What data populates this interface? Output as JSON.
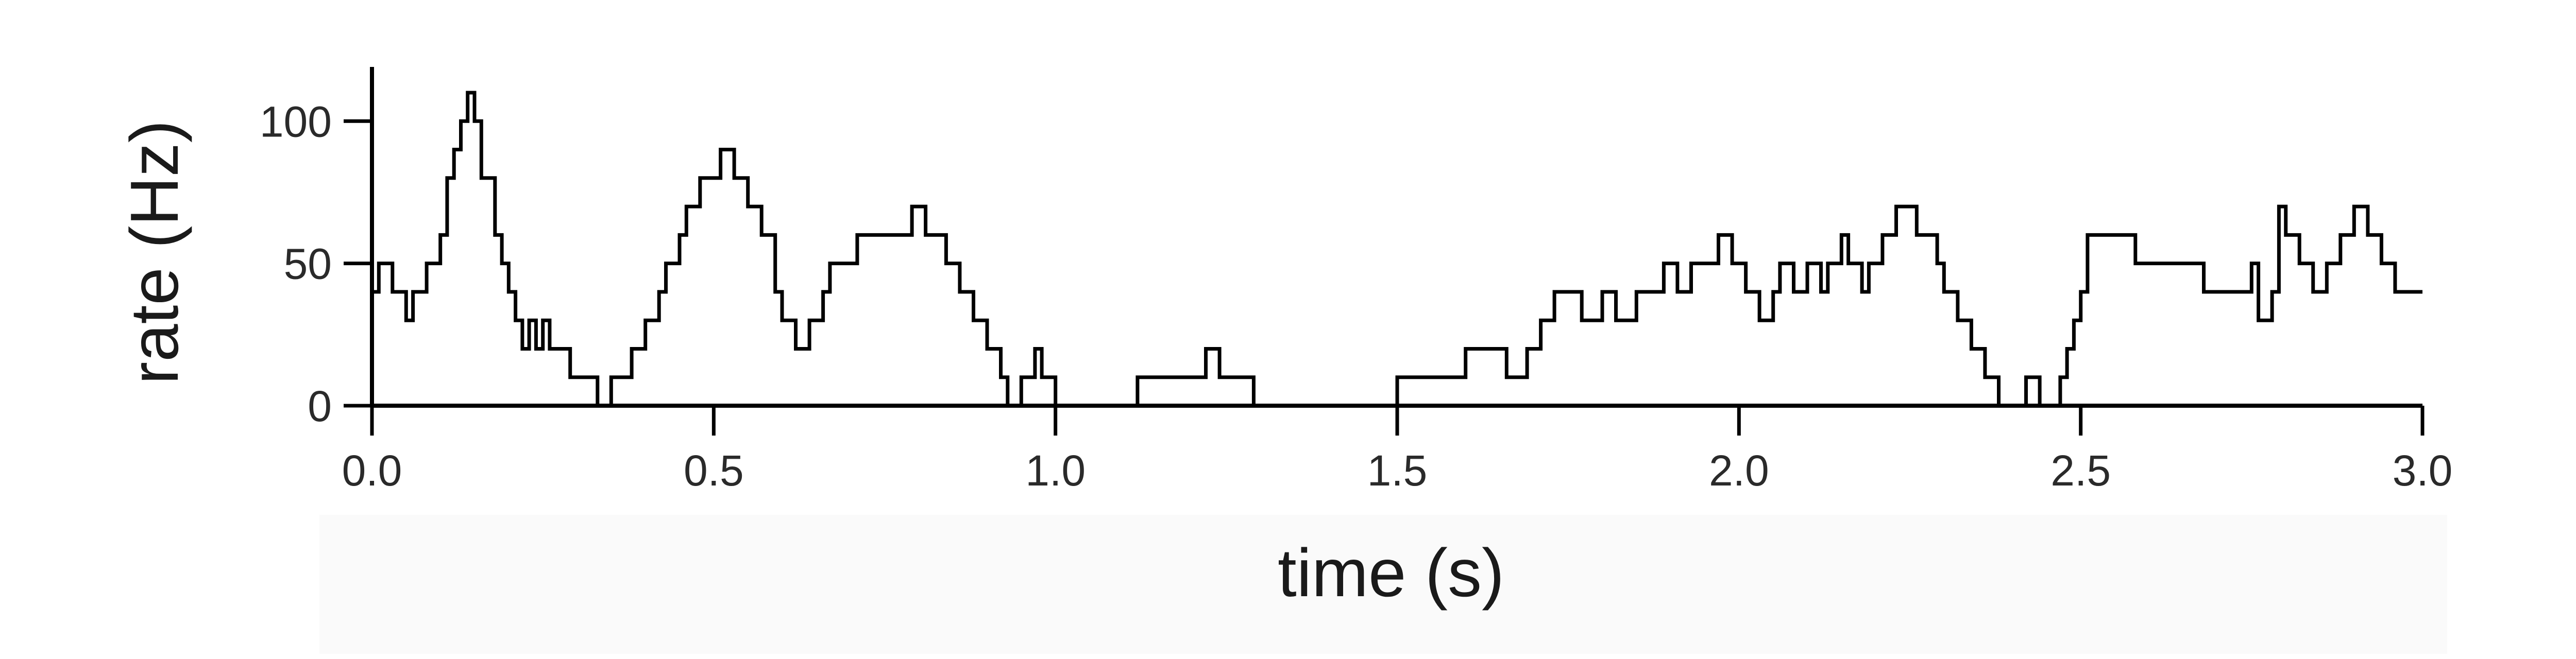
{
  "chart_data": {
    "type": "line",
    "title": "",
    "xlabel": "time (s)",
    "ylabel": "rate (Hz)",
    "xlim": [
      0,
      3.0
    ],
    "ylim": [
      0,
      110
    ],
    "xticks": [
      0.0,
      0.5,
      1.0,
      1.5,
      2.0,
      2.5,
      3.0
    ],
    "xtick_labels": [
      "0.0",
      "0.5",
      "1.0",
      "1.5",
      "2.0",
      "2.5",
      "3.0"
    ],
    "yticks": [
      0,
      50,
      100
    ],
    "ytick_labels": [
      "0",
      "50",
      "100"
    ],
    "grid": false,
    "legend": "none",
    "line_color": "#000000",
    "step": true,
    "series": [
      {
        "x": [
          0,
          0.01,
          0.03,
          0.05,
          0.06,
          0.08,
          0.1,
          0.11,
          0.12,
          0.13,
          0.14,
          0.15,
          0.16,
          0.18,
          0.19,
          0.2,
          0.21,
          0.22,
          0.23,
          0.24,
          0.25,
          0.26,
          0.29,
          0.33,
          0.35,
          0.38,
          0.4,
          0.42,
          0.43,
          0.45,
          0.46,
          0.48,
          0.51,
          0.53,
          0.55,
          0.57,
          0.59,
          0.6,
          0.62,
          0.64,
          0.66,
          0.67,
          0.71,
          0.79,
          0.81,
          0.84,
          0.86,
          0.88,
          0.9,
          0.92,
          0.93,
          0.95,
          0.97,
          0.98,
          1.0,
          1.02,
          1.04,
          1.07,
          1.12,
          1.22,
          1.24,
          1.29,
          1.32,
          1.35,
          1.5,
          1.6,
          1.66,
          1.69,
          1.71,
          1.73,
          1.77,
          1.8,
          1.82,
          1.85,
          1.89,
          1.91,
          1.93,
          1.97,
          1.99,
          2.01,
          2.03,
          2.05,
          2.06,
          2.08,
          2.1,
          2.12,
          2.13,
          2.15,
          2.16,
          2.18,
          2.19,
          2.21,
          2.23,
          2.26,
          2.29,
          2.3,
          2.32,
          2.34,
          2.36,
          2.38,
          2.42,
          2.44,
          2.45,
          2.47,
          2.48,
          2.49,
          2.5,
          2.51,
          2.58,
          2.68,
          2.75,
          2.76,
          2.78,
          2.79,
          2.8,
          2.82,
          2.84,
          2.86,
          2.88,
          2.9,
          2.92,
          2.94,
          2.96,
          2.98,
          3.0
        ],
        "y": [
          40,
          50,
          40,
          30,
          40,
          50,
          60,
          80,
          90,
          100,
          110,
          100,
          80,
          60,
          50,
          40,
          30,
          20,
          30,
          20,
          30,
          20,
          10,
          0,
          10,
          20,
          30,
          40,
          50,
          60,
          70,
          80,
          90,
          80,
          70,
          60,
          40,
          30,
          20,
          30,
          40,
          50,
          60,
          70,
          60,
          50,
          40,
          30,
          20,
          10,
          0,
          10,
          20,
          10,
          0,
          0,
          0,
          0,
          10,
          20,
          10,
          0,
          0,
          0,
          10,
          20,
          10,
          20,
          30,
          40,
          30,
          40,
          30,
          40,
          50,
          40,
          50,
          60,
          50,
          40,
          30,
          40,
          50,
          40,
          50,
          40,
          50,
          60,
          50,
          40,
          50,
          60,
          70,
          60,
          50,
          40,
          30,
          20,
          10,
          0,
          10,
          0,
          0,
          10,
          20,
          30,
          40,
          60,
          50,
          40,
          50,
          30,
          40,
          70,
          60,
          50,
          40,
          50,
          60,
          70,
          60,
          50,
          40,
          40,
          40
        ]
      }
    ]
  }
}
